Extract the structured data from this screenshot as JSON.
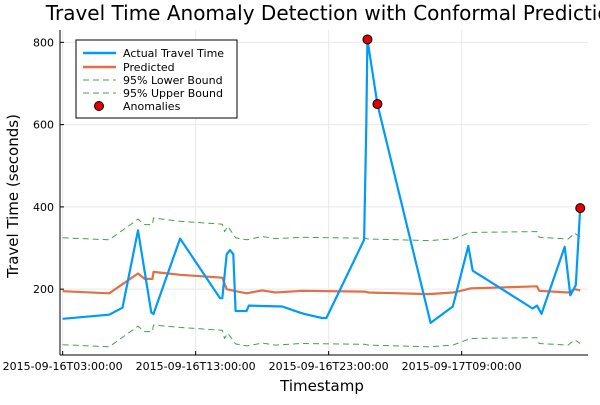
{
  "chart_data": {
    "type": "line",
    "title": "Travel Time Anomaly Detection with Conformal Prediction",
    "xlabel": "Timestamp",
    "ylabel": "Travel Time (seconds)",
    "x_ticks": [
      "2015-09-16T03:00:00",
      "2015-09-16T13:00:00",
      "2015-09-16T23:00:00",
      "2015-09-17T09:00:00"
    ],
    "y_ticks": [
      200,
      400,
      600,
      800
    ],
    "xlim": [
      "2015-09-16T02:48:00",
      "2015-09-17T18:30:00"
    ],
    "ylim": [
      40,
      830
    ],
    "grid": true,
    "legend_position": "top-left",
    "legend": [
      "Actual Travel Time",
      "Predicted",
      "95% Lower Bound",
      "95% Upper Bound",
      "Anomalies"
    ],
    "colors": {
      "actual": "#009af9",
      "predicted": "#e26f46",
      "bounds": "#3da44d",
      "anomaly_fill": "#e30000",
      "grid": "#e8e8e8",
      "axis": "#000000"
    },
    "series": [
      {
        "name": "Actual Travel Time",
        "style": "solid",
        "points": [
          [
            "2015-09-16T03:00:00",
            128
          ],
          [
            "2015-09-16T06:30:00",
            138
          ],
          [
            "2015-09-16T07:30:00",
            155
          ],
          [
            "2015-09-16T08:40:00",
            343
          ],
          [
            "2015-09-16T09:40:00",
            143
          ],
          [
            "2015-09-16T09:50:00",
            140
          ],
          [
            "2015-09-16T11:50:00",
            323
          ],
          [
            "2015-09-16T14:50:00",
            178
          ],
          [
            "2015-09-16T15:00:00",
            178
          ],
          [
            "2015-09-16T15:20:00",
            285
          ],
          [
            "2015-09-16T15:35:00",
            295
          ],
          [
            "2015-09-16T15:50:00",
            285
          ],
          [
            "2015-09-16T16:00:00",
            147
          ],
          [
            "2015-09-16T16:50:00",
            147
          ],
          [
            "2015-09-16T17:00:00",
            160
          ],
          [
            "2015-09-16T19:30:00",
            158
          ],
          [
            "2015-09-16T20:50:00",
            143
          ],
          [
            "2015-09-16T21:10:00",
            140
          ],
          [
            "2015-09-16T22:30:00",
            130
          ],
          [
            "2015-09-16T22:50:00",
            130
          ],
          [
            "2015-09-17T01:40:00",
            320
          ],
          [
            "2015-09-17T01:50:00",
            600
          ],
          [
            "2015-09-17T01:55:00",
            807
          ],
          [
            "2015-09-17T02:40:00",
            650
          ],
          [
            "2015-09-17T06:40:00",
            118
          ],
          [
            "2015-09-17T08:20:00",
            158
          ],
          [
            "2015-09-17T09:30:00",
            305
          ],
          [
            "2015-09-17T09:50:00",
            245
          ],
          [
            "2015-09-17T14:20:00",
            153
          ],
          [
            "2015-09-17T14:40:00",
            160
          ],
          [
            "2015-09-17T15:00:00",
            140
          ],
          [
            "2015-09-17T16:45:00",
            303
          ],
          [
            "2015-09-17T17:10:00",
            185
          ],
          [
            "2015-09-17T17:35:00",
            210
          ],
          [
            "2015-09-17T17:55:00",
            397
          ]
        ]
      },
      {
        "name": "Predicted",
        "style": "solid",
        "points": [
          [
            "2015-09-16T03:00:00",
            195
          ],
          [
            "2015-09-16T06:30:00",
            190
          ],
          [
            "2015-09-16T08:40:00",
            238
          ],
          [
            "2015-09-16T09:10:00",
            225
          ],
          [
            "2015-09-16T09:45:00",
            225
          ],
          [
            "2015-09-16T09:50:00",
            242
          ],
          [
            "2015-09-16T11:50:00",
            235
          ],
          [
            "2015-09-16T15:00:00",
            228
          ],
          [
            "2015-09-16T15:20:00",
            200
          ],
          [
            "2015-09-16T16:00:00",
            195
          ],
          [
            "2015-09-16T16:50:00",
            190
          ],
          [
            "2015-09-16T18:00:00",
            197
          ],
          [
            "2015-09-16T19:00:00",
            192
          ],
          [
            "2015-09-16T21:00:00",
            196
          ],
          [
            "2015-09-17T01:40:00",
            194
          ],
          [
            "2015-09-17T02:00:00",
            192
          ],
          [
            "2015-09-17T06:30:00",
            188
          ],
          [
            "2015-09-17T08:20:00",
            192
          ],
          [
            "2015-09-17T08:50:00",
            195
          ],
          [
            "2015-09-17T09:40:00",
            202
          ],
          [
            "2015-09-17T14:40:00",
            207
          ],
          [
            "2015-09-17T14:50:00",
            196
          ],
          [
            "2015-09-17T17:00:00",
            192
          ],
          [
            "2015-09-17T17:30:00",
            200
          ],
          [
            "2015-09-17T17:55:00",
            197
          ]
        ]
      },
      {
        "name": "95% Lower Bound",
        "style": "dashed",
        "points": [
          [
            "2015-09-16T03:00:00",
            65
          ],
          [
            "2015-09-16T06:30:00",
            60
          ],
          [
            "2015-09-16T08:40:00",
            110
          ],
          [
            "2015-09-16T09:10:00",
            97
          ],
          [
            "2015-09-16T09:45:00",
            97
          ],
          [
            "2015-09-16T09:50:00",
            113
          ],
          [
            "2015-09-16T11:50:00",
            107
          ],
          [
            "2015-09-16T15:00:00",
            100
          ],
          [
            "2015-09-16T15:10:00",
            80
          ],
          [
            "2015-09-16T15:25:00",
            93
          ],
          [
            "2015-09-16T16:00:00",
            67
          ],
          [
            "2015-09-16T16:50:00",
            62
          ],
          [
            "2015-09-16T18:00:00",
            69
          ],
          [
            "2015-09-16T19:00:00",
            64
          ],
          [
            "2015-09-16T21:00:00",
            68
          ],
          [
            "2015-09-17T01:40:00",
            66
          ],
          [
            "2015-09-17T02:00:00",
            64
          ],
          [
            "2015-09-17T06:30:00",
            60
          ],
          [
            "2015-09-17T08:20:00",
            64
          ],
          [
            "2015-09-17T09:40:00",
            80
          ],
          [
            "2015-09-17T14:40:00",
            82
          ],
          [
            "2015-09-17T14:50:00",
            68
          ],
          [
            "2015-09-17T17:00:00",
            64
          ],
          [
            "2015-09-17T17:30:00",
            77
          ],
          [
            "2015-09-17T17:55:00",
            68
          ]
        ]
      },
      {
        "name": "95% Upper Bound",
        "style": "dashed",
        "points": [
          [
            "2015-09-16T03:00:00",
            325
          ],
          [
            "2015-09-16T06:30:00",
            320
          ],
          [
            "2015-09-16T08:40:00",
            370
          ],
          [
            "2015-09-16T09:10:00",
            357
          ],
          [
            "2015-09-16T09:45:00",
            357
          ],
          [
            "2015-09-16T09:50:00",
            373
          ],
          [
            "2015-09-16T11:50:00",
            365
          ],
          [
            "2015-09-16T15:00:00",
            358
          ],
          [
            "2015-09-16T15:10:00",
            340
          ],
          [
            "2015-09-16T15:25:00",
            353
          ],
          [
            "2015-09-16T16:00:00",
            325
          ],
          [
            "2015-09-16T16:50:00",
            320
          ],
          [
            "2015-09-16T18:00:00",
            328
          ],
          [
            "2015-09-16T19:00:00",
            323
          ],
          [
            "2015-09-16T21:00:00",
            326
          ],
          [
            "2015-09-17T01:40:00",
            324
          ],
          [
            "2015-09-17T02:00:00",
            322
          ],
          [
            "2015-09-17T06:30:00",
            318
          ],
          [
            "2015-09-17T08:20:00",
            322
          ],
          [
            "2015-09-17T09:40:00",
            338
          ],
          [
            "2015-09-17T14:40:00",
            340
          ],
          [
            "2015-09-17T14:50:00",
            326
          ],
          [
            "2015-09-17T17:00:00",
            322
          ],
          [
            "2015-09-17T17:30:00",
            336
          ],
          [
            "2015-09-17T17:55:00",
            326
          ]
        ]
      }
    ],
    "anomalies": [
      [
        "2015-09-17T01:55:00",
        807
      ],
      [
        "2015-09-17T02:40:00",
        650
      ],
      [
        "2015-09-17T17:55:00",
        397
      ]
    ]
  }
}
